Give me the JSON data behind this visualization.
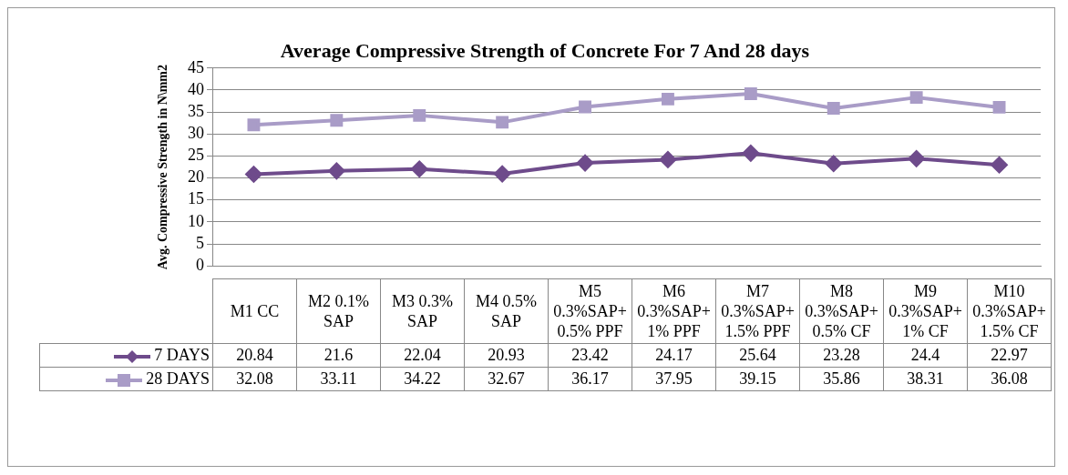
{
  "chart_data": {
    "type": "line",
    "title": "Average Compressive Strength of Concrete For 7 And 28 days",
    "ylabel": "Avg. Compressive Strength in N\\mm2",
    "categories": [
      "M1 CC",
      "M2 0.1% SAP",
      "M3 0.3% SAP",
      "M4 0.5% SAP",
      "M5 0.3%SAP+0.5% PPF",
      "M6 0.3%SAP+1% PPF",
      "M7 0.3%SAP+1.5% PPF",
      "M8 0.3%SAP+0.5% CF",
      "M9 0.3%SAP+1% CF",
      "M10 0.3%SAP+1.5% CF"
    ],
    "series": [
      {
        "name": "7 DAYS",
        "color": "#6e4b8b",
        "marker": "diamond",
        "values": [
          20.84,
          21.6,
          22.04,
          20.93,
          23.42,
          24.17,
          25.64,
          23.28,
          24.4,
          22.97
        ]
      },
      {
        "name": "28 DAYS",
        "color": "#a99cc7",
        "marker": "square",
        "values": [
          32.08,
          33.11,
          34.22,
          32.67,
          36.17,
          37.95,
          39.15,
          35.86,
          38.31,
          36.08
        ]
      }
    ],
    "ylim": [
      0,
      45
    ],
    "yticks": [
      0,
      5,
      10,
      15,
      20,
      25,
      30,
      35,
      40,
      45
    ],
    "grid": "y",
    "legend": "bottom",
    "data_labels": true
  }
}
